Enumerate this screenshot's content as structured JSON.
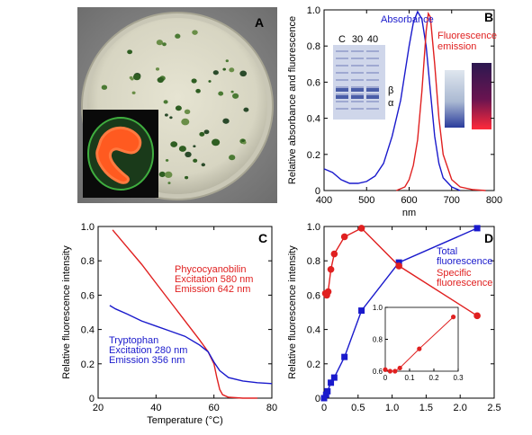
{
  "panels": {
    "A": {
      "letter": "A"
    },
    "B": {
      "letter": "B"
    },
    "C": {
      "letter": "C"
    },
    "D": {
      "letter": "D"
    }
  },
  "colors": {
    "blue": "#1a1acc",
    "red": "#e02020",
    "plate_bg": "#8c8c8c",
    "plate_agar": "#d9d8c6",
    "colony": "#3c6b2c",
    "gel_bg": "#cfd6ea",
    "gel_band": "#4a5ea8"
  },
  "chart_data": [
    {
      "panel": "B",
      "type": "line",
      "xlabel": "nm",
      "ylabel": "Relative absorbance and fluorescence",
      "xlim": [
        400,
        800
      ],
      "ylim": [
        0,
        1.0
      ],
      "xticks": [
        400,
        500,
        600,
        700,
        800
      ],
      "yticks": [
        0,
        0.2,
        0.4,
        0.6,
        0.8,
        1.0
      ],
      "ytick_labels": [
        "0",
        "0.2",
        "0.4",
        "0.6",
        "0.8",
        "1.0"
      ],
      "series": [
        {
          "name": "Absorbance",
          "color": "blue",
          "x": [
            400,
            420,
            440,
            460,
            480,
            500,
            520,
            540,
            560,
            580,
            600,
            610,
            620,
            630,
            640,
            650,
            660,
            670,
            680,
            700,
            720
          ],
          "y": [
            0.12,
            0.1,
            0.06,
            0.04,
            0.04,
            0.05,
            0.08,
            0.15,
            0.3,
            0.5,
            0.8,
            0.93,
            0.99,
            0.95,
            0.8,
            0.55,
            0.3,
            0.15,
            0.07,
            0.02,
            0.0
          ]
        },
        {
          "name": "Fluorescence emission",
          "name_lines": [
            "Fluorescence",
            "emission"
          ],
          "color": "red",
          "x": [
            570,
            590,
            600,
            610,
            620,
            630,
            640,
            645,
            650,
            660,
            670,
            680,
            700,
            720,
            750,
            780
          ],
          "y": [
            0.0,
            0.02,
            0.06,
            0.14,
            0.28,
            0.55,
            0.88,
            0.98,
            0.96,
            0.7,
            0.4,
            0.2,
            0.06,
            0.02,
            0.005,
            0.0
          ]
        }
      ],
      "gel": {
        "lanes": [
          "C",
          "30",
          "40"
        ],
        "bands": [
          "β",
          "α"
        ]
      }
    },
    {
      "panel": "C",
      "type": "line",
      "xlabel": "Temperature (°C)",
      "ylabel": "Relative fluorescence intensity",
      "xlim": [
        20,
        80
      ],
      "ylim": [
        0,
        1.0
      ],
      "xticks": [
        20,
        40,
        60,
        80
      ],
      "yticks": [
        0,
        0.2,
        0.4,
        0.6,
        0.8,
        1.0
      ],
      "ytick_labels": [
        "0",
        "0.2",
        "0.4",
        "0.6",
        "0.8",
        "1.0"
      ],
      "series": [
        {
          "name": "Phycocyanobilin",
          "label_lines": [
            "Phycocyanobilin",
            "Excitation 580 nm",
            "Emission 642 nm"
          ],
          "color": "red",
          "x": [
            25,
            30,
            35,
            40,
            45,
            50,
            55,
            58,
            60,
            61,
            62,
            63,
            65,
            70,
            75
          ],
          "y": [
            0.98,
            0.88,
            0.78,
            0.67,
            0.56,
            0.45,
            0.34,
            0.27,
            0.2,
            0.12,
            0.05,
            0.02,
            0.005,
            0.0,
            0.0
          ]
        },
        {
          "name": "Tryptophan",
          "label_lines": [
            "Tryptophan",
            "Excitation 280 nm",
            "Emission 356 nm"
          ],
          "color": "blue",
          "x": [
            24,
            26,
            30,
            35,
            40,
            45,
            50,
            55,
            58,
            60,
            62,
            65,
            70,
            75,
            80
          ],
          "y": [
            0.54,
            0.52,
            0.49,
            0.45,
            0.42,
            0.39,
            0.36,
            0.31,
            0.27,
            0.21,
            0.16,
            0.12,
            0.1,
            0.09,
            0.085
          ]
        }
      ]
    },
    {
      "panel": "D",
      "type": "line",
      "ylabel": "Relative fluorescence intensity",
      "xlim": [
        0,
        2.5
      ],
      "ylim": [
        0,
        1.0
      ],
      "xticks": [
        0,
        0.5,
        1,
        1.5,
        2,
        2.5
      ],
      "xtick_labels": [
        "0",
        "0.5",
        "1.0",
        "1.5",
        "2.0",
        "2.5"
      ],
      "yticks": [
        0,
        0.2,
        0.4,
        0.6,
        0.8,
        1.0
      ],
      "ytick_labels": [
        "0",
        "0.2",
        "0.4",
        "0.6",
        "0.8",
        "1.0"
      ],
      "series": [
        {
          "name": "Total fluorescence",
          "label_lines": [
            "Total",
            "fluorescence"
          ],
          "color": "blue",
          "marker": "square",
          "x": [
            0.0,
            0.03,
            0.05,
            0.1,
            0.15,
            0.3,
            0.55,
            1.1,
            2.25
          ],
          "y": [
            0.0,
            0.02,
            0.04,
            0.09,
            0.12,
            0.24,
            0.51,
            0.79,
            0.99
          ]
        },
        {
          "name": "Specific fluorescence",
          "label_lines": [
            "Specific",
            "fluorescence"
          ],
          "color": "red",
          "marker": "circle",
          "x": [
            0.02,
            0.04,
            0.06,
            0.1,
            0.15,
            0.3,
            0.55,
            1.1,
            2.25
          ],
          "y": [
            0.61,
            0.6,
            0.62,
            0.75,
            0.84,
            0.94,
            0.99,
            0.77,
            0.48
          ]
        }
      ],
      "inset": {
        "xlim": [
          0,
          0.3
        ],
        "ylim": [
          0.6,
          1.0
        ],
        "xticks": [
          0,
          0.1,
          0.2,
          0.3
        ],
        "xtick_labels": [
          "0",
          "0.1",
          "0.2",
          "0.3"
        ],
        "yticks": [
          0.6,
          0.8,
          1.0
        ],
        "ytick_labels": [
          "0.6",
          "0.8",
          "1.0"
        ],
        "x": [
          0.0,
          0.02,
          0.04,
          0.06,
          0.14,
          0.28
        ],
        "y": [
          0.61,
          0.6,
          0.6,
          0.62,
          0.74,
          0.94
        ]
      }
    }
  ]
}
